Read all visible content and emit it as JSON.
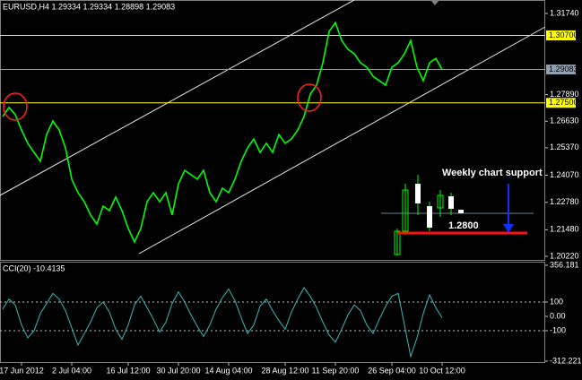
{
  "chart_data": [
    {
      "type": "line",
      "title": "EURUSD,H4  1.29334 1.29334 1.28898 1.29083",
      "categories": [
        null,
        null,
        null,
        "17 Jun 2012",
        null,
        null,
        null,
        null,
        null,
        null,
        null,
        "2 Jul 04:00",
        null,
        null,
        null,
        null,
        null,
        null,
        null,
        null,
        "16 Jul 12:00",
        null,
        null,
        null,
        null,
        null,
        null,
        null,
        "30 Jul 20:00",
        null,
        null,
        null,
        null,
        null,
        null,
        null,
        "14 Aug 04:00",
        null,
        null,
        null,
        null,
        null,
        null,
        null,
        null,
        "28 Aug 12:00",
        null,
        null,
        null,
        null,
        null,
        null,
        null,
        "11 Sep 20:00",
        null,
        null,
        null,
        null,
        null,
        null,
        null,
        null,
        "26 Sep 04:00",
        null,
        null,
        null,
        null,
        null,
        null,
        null,
        "10 Oct 12:00"
      ],
      "series": [
        {
          "name": "EURUSD,H4",
          "color": "#00ff00",
          "values": [
            1.2685,
            1.2728,
            1.2694,
            1.2621,
            1.2558,
            1.2515,
            1.2473,
            1.26,
            1.2664,
            1.2621,
            1.2536,
            1.2388,
            1.2324,
            1.2281,
            1.2218,
            1.2175,
            1.226,
            1.2239,
            1.2303,
            1.2239,
            1.2154,
            1.209,
            1.2154,
            1.2281,
            1.2324,
            1.2281,
            1.2324,
            1.2218,
            1.2366,
            1.243,
            1.2409,
            1.2388,
            1.243,
            1.2324,
            1.2281,
            1.2345,
            1.2324,
            1.2388,
            1.2473,
            1.2536,
            1.2579,
            1.2515,
            1.2558,
            1.2515,
            1.26,
            1.2558,
            1.2579,
            1.2621,
            1.2685,
            1.2791,
            1.2834,
            1.294,
            1.3089,
            1.3131,
            1.3046,
            1.3004,
            1.2983,
            1.294,
            1.2919,
            1.2876,
            1.2855,
            1.2834,
            1.2919,
            1.294,
            1.2983,
            1.3046,
            1.2919,
            1.2855,
            1.294,
            1.2961,
            1.29083
          ]
        }
      ],
      "ylim": [
        1.2005,
        1.3238
      ],
      "yticks": [
        {
          "value": 1.3174,
          "label": "1.31740"
        },
        {
          "value": 1.2789,
          "label": "1.27890"
        },
        {
          "value": 1.2663,
          "label": "1.26630"
        },
        {
          "value": 1.2537,
          "label": "1.25370"
        },
        {
          "value": 1.2407,
          "label": "1.24070"
        },
        {
          "value": 1.2278,
          "label": "1.22780"
        },
        {
          "value": 1.2148,
          "label": "1.21480"
        },
        {
          "value": 1.2022,
          "label": "1.20220"
        }
      ],
      "hlines": [
        {
          "value": 1.307,
          "label": "1.30700",
          "color": "#ffff00"
        },
        {
          "value": 1.29083,
          "label": "1.29083",
          "color": "#8fa0b0"
        },
        {
          "value": 1.275,
          "label": "1.27500",
          "color": "#ffff00"
        }
      ],
      "annotations": [
        "Weekly chart support",
        "1.2800"
      ]
    },
    {
      "type": "line",
      "title": "CCI(20) -10.4135",
      "series": [
        {
          "name": "CCI(20)",
          "color": "#3cb8b8",
          "values": [
            50,
            120,
            80,
            -60,
            -150,
            -100,
            20,
            90,
            160,
            120,
            40,
            -80,
            -200,
            -120,
            -40,
            60,
            100,
            30,
            -90,
            -160,
            -60,
            80,
            140,
            60,
            -20,
            -110,
            -40,
            90,
            170,
            100,
            10,
            -70,
            -140,
            -60,
            50,
            130,
            190,
            110,
            -10,
            -120,
            -60,
            70,
            120,
            40,
            -30,
            -90,
            30,
            120,
            200,
            140,
            60,
            -40,
            -130,
            -180,
            -90,
            10,
            80,
            40,
            -60,
            -120,
            -20,
            70,
            140,
            160,
            -60,
            -280,
            -150,
            20,
            150,
            60,
            -10.4135
          ]
        }
      ],
      "ylim": [
        -325,
        381
      ],
      "yticks": [
        356.181,
        100,
        {
          "value": 0,
          "label": "0.00"
        },
        -100,
        -312.221
      ],
      "levels": [
        100,
        -100
      ]
    }
  ]
}
